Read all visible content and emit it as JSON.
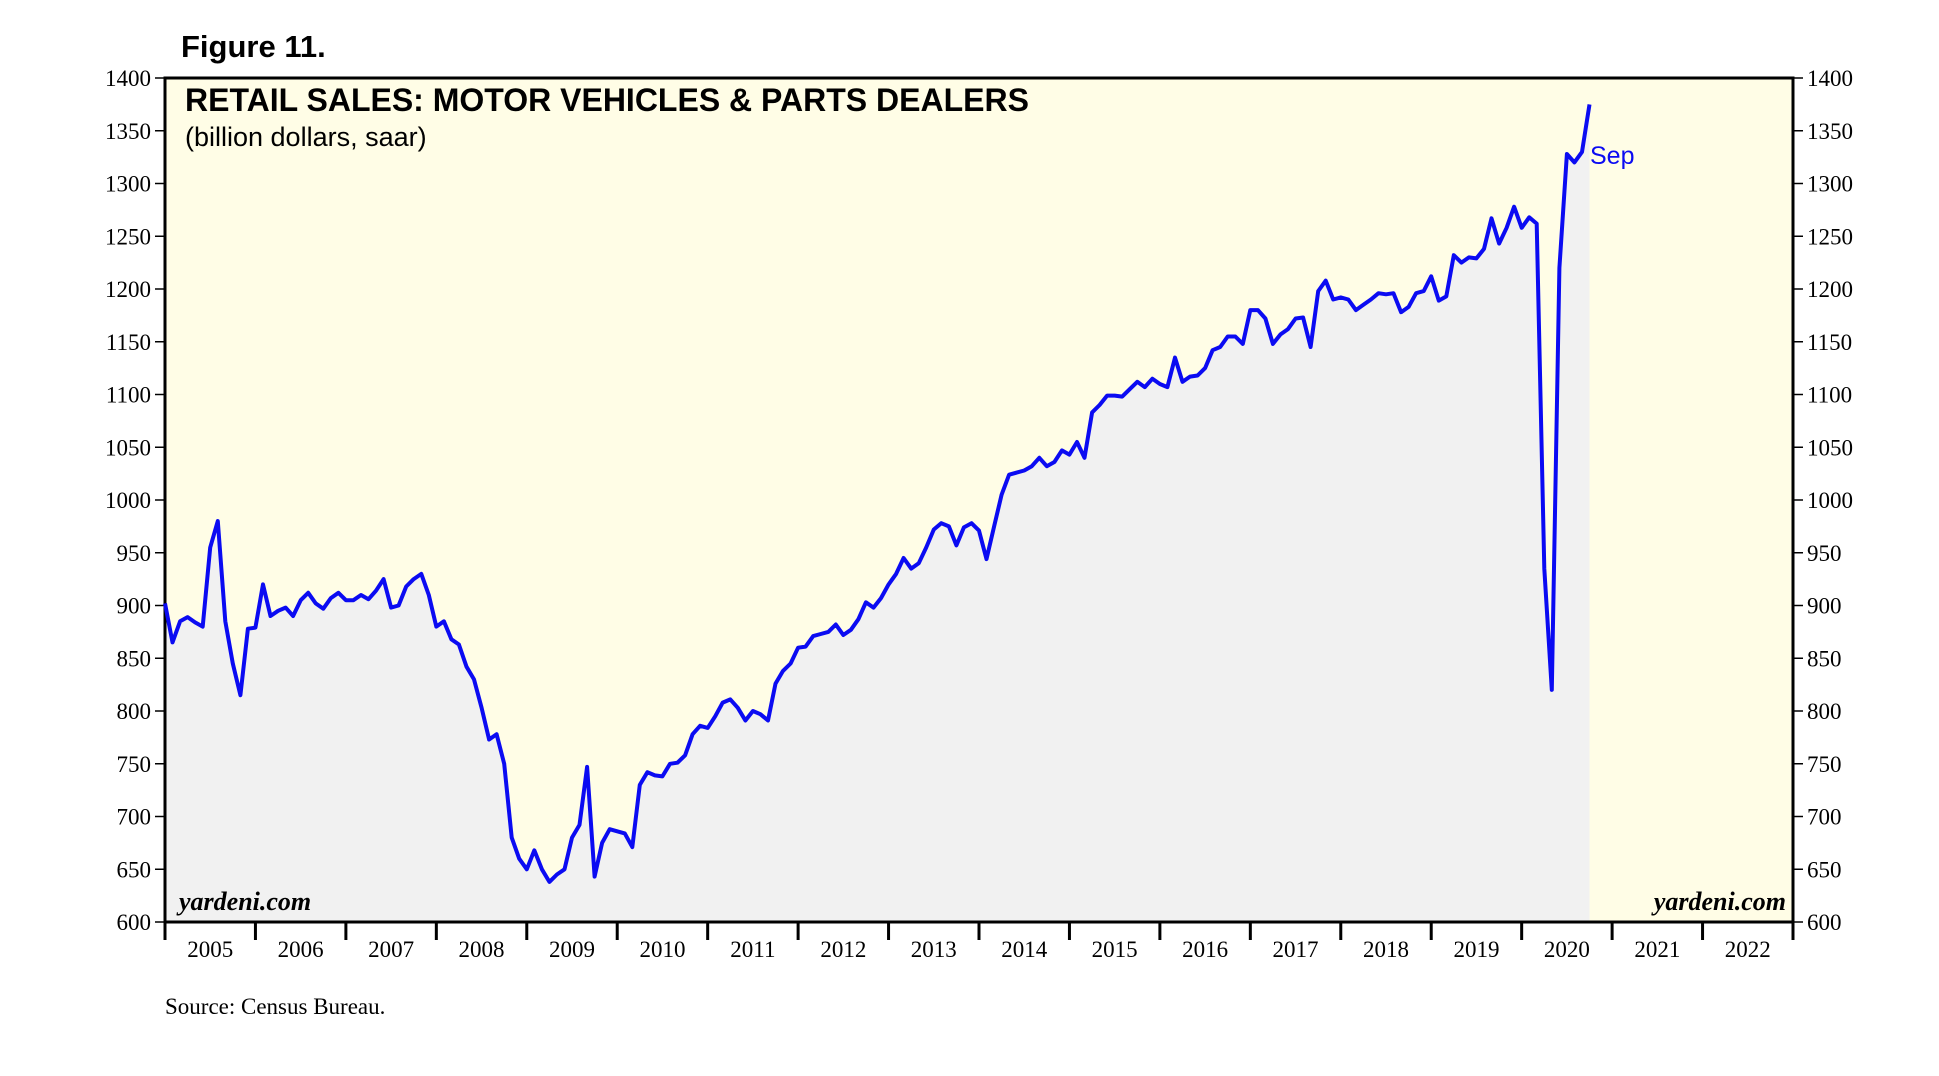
{
  "figure_label": "Figure 11.",
  "watermark": "yardeni.com",
  "source": "Source: Census Bureau.",
  "colors": {
    "series": "#0b0bf2",
    "background_forecast": "#fffde6",
    "area_fill": "#f1f1f1"
  },
  "chart_data": {
    "type": "line",
    "title": "RETAIL SALES: MOTOR VEHICLES & PARTS DEALERS",
    "subtitle": "(billion dollars, saar)",
    "ylim": [
      600,
      1400
    ],
    "yticks": [
      600,
      650,
      700,
      750,
      800,
      850,
      900,
      950,
      1000,
      1050,
      1100,
      1150,
      1200,
      1250,
      1300,
      1350,
      1400
    ],
    "xlim": [
      "2005-01",
      "2023-01"
    ],
    "x_labels": [
      "2005",
      "2006",
      "2007",
      "2008",
      "2009",
      "2010",
      "2011",
      "2012",
      "2013",
      "2014",
      "2015",
      "2016",
      "2017",
      "2018",
      "2019",
      "2020",
      "2021",
      "2022"
    ],
    "axis_right": true,
    "grid": false,
    "annotation": {
      "text": "Sep",
      "x": "2020-09"
    },
    "series": [
      {
        "start": "2005-01",
        "frequency": "monthly",
        "values": [
          902,
          865,
          885,
          889,
          884,
          880,
          955,
          980,
          885,
          845,
          815,
          878,
          879,
          920,
          890,
          895,
          898,
          890,
          905,
          912,
          902,
          897,
          907,
          912,
          905,
          905,
          910,
          906,
          914,
          925,
          898,
          900,
          918,
          925,
          930,
          910,
          880,
          885,
          868,
          863,
          842,
          830,
          803,
          773,
          778,
          750,
          680,
          660,
          650,
          668,
          650,
          638,
          645,
          650,
          680,
          692,
          747,
          643,
          675,
          688,
          686,
          684,
          671,
          730,
          742,
          739,
          738,
          750,
          751,
          758,
          778,
          786,
          784,
          795,
          808,
          811,
          803,
          791,
          800,
          797,
          791,
          826,
          838,
          845,
          860,
          861,
          871,
          873,
          875,
          882,
          872,
          877,
          887,
          903,
          898,
          907,
          920,
          930,
          945,
          935,
          940,
          955,
          972,
          978,
          975,
          957,
          974,
          978,
          971,
          944,
          975,
          1005,
          1024,
          1026,
          1028,
          1032,
          1040,
          1032,
          1036,
          1047,
          1043,
          1055,
          1040,
          1083,
          1090,
          1099,
          1099,
          1098,
          1105,
          1112,
          1107,
          1115,
          1110,
          1107,
          1135,
          1112,
          1117,
          1118,
          1125,
          1142,
          1145,
          1155,
          1155,
          1148,
          1180,
          1180,
          1172,
          1148,
          1157,
          1162,
          1172,
          1173,
          1145,
          1198,
          1208,
          1190,
          1192,
          1190,
          1180,
          1185,
          1190,
          1196,
          1195,
          1196,
          1178,
          1183,
          1196,
          1198,
          1212,
          1189,
          1193,
          1232,
          1225,
          1230,
          1229,
          1238,
          1267,
          1243,
          1258,
          1278,
          1258,
          1268,
          1262,
          935,
          820,
          1220,
          1328,
          1320,
          1330,
          1375
        ]
      }
    ]
  }
}
